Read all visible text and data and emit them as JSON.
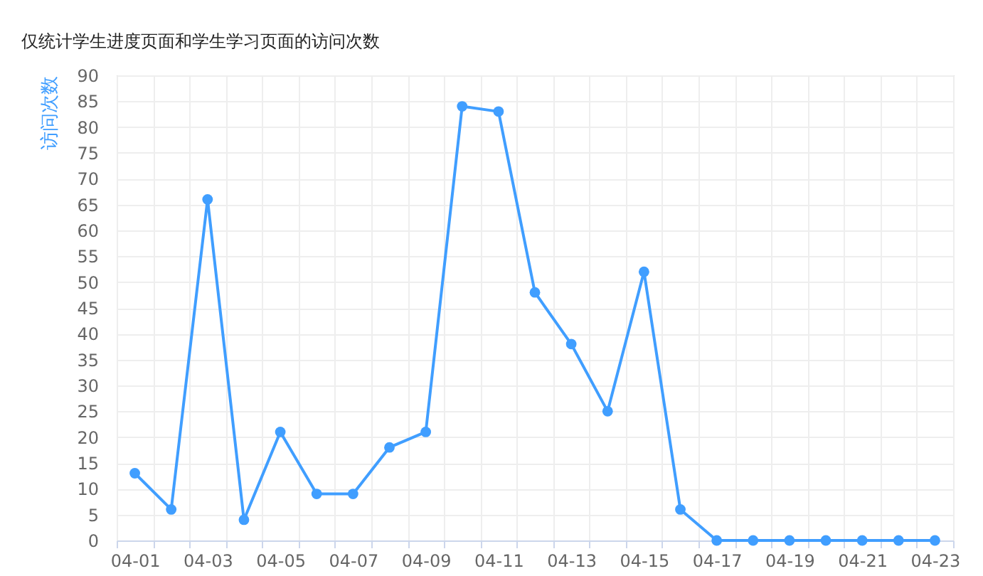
{
  "chart_data": {
    "type": "line",
    "title": "仅统计学生进度页面和学生学习页面的访问次数",
    "ylabel": "访问次数",
    "categories": [
      "04-01",
      null,
      "04-03",
      null,
      "04-05",
      null,
      "04-07",
      null,
      "04-09",
      null,
      "04-11",
      null,
      "04-13",
      null,
      "04-15",
      null,
      "04-17",
      null,
      "04-19",
      null,
      "04-21",
      null,
      "04-23"
    ],
    "series": [
      {
        "color": "#409eff",
        "values": [
          13,
          6,
          66,
          4,
          21,
          9,
          9,
          18,
          21,
          84,
          83,
          48,
          38,
          25,
          52,
          6,
          0,
          0,
          0,
          0,
          0,
          0,
          0
        ]
      }
    ],
    "ylim": [
      0,
      90
    ],
    "yticks": [
      0,
      5,
      10,
      15,
      20,
      25,
      30,
      35,
      40,
      45,
      50,
      55,
      60,
      65,
      70,
      75,
      80,
      85,
      90
    ],
    "grid": true,
    "marker": "circle",
    "line_style": "solid"
  }
}
